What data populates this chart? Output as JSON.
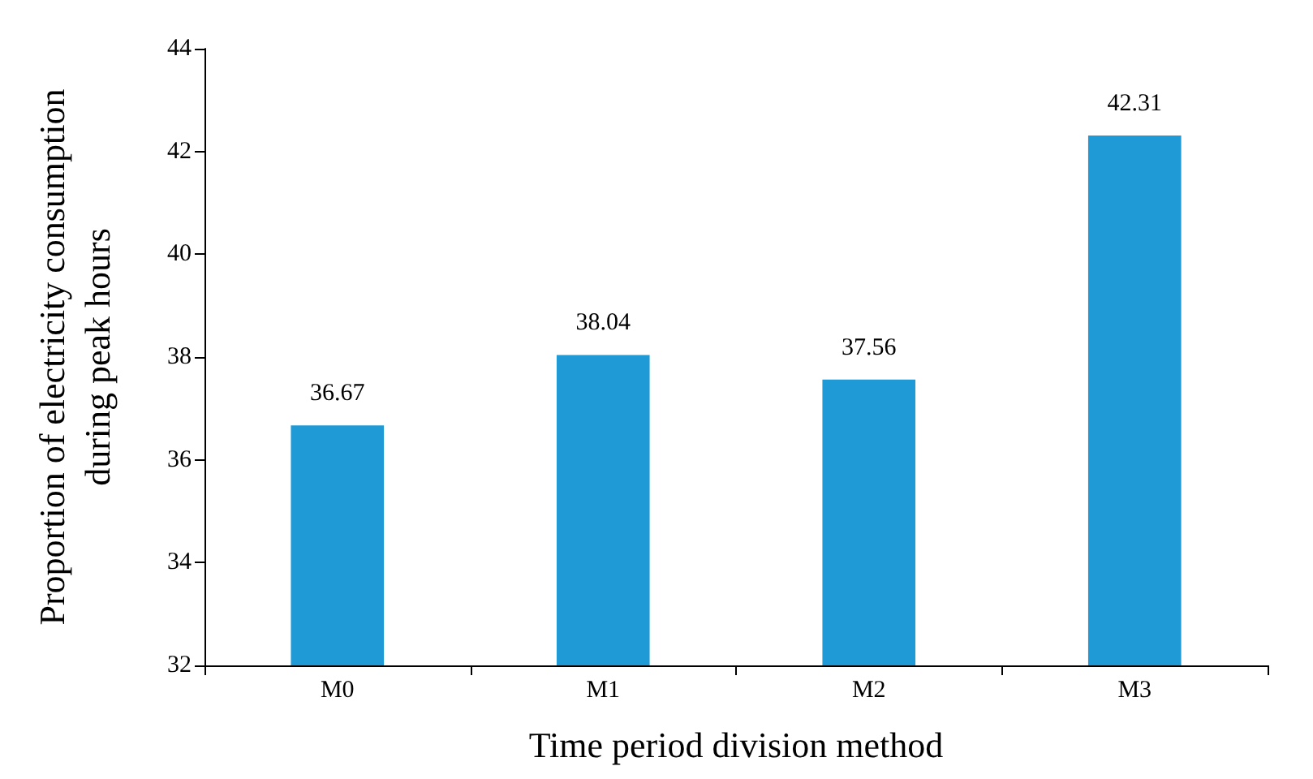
{
  "chart_data": {
    "type": "bar",
    "xlabel": "Time period division method",
    "ylabel": "Proportion of electricity consumption\nduring peak hours",
    "categories": [
      "M0",
      "M1",
      "M2",
      "M3"
    ],
    "values": [
      36.67,
      38.04,
      37.56,
      42.31
    ],
    "color": "#1f9ad6",
    "ylim": [
      32,
      44
    ],
    "yticks": [
      32,
      34,
      36,
      38,
      40,
      42,
      44
    ],
    "data_labels": true,
    "grid": false
  }
}
